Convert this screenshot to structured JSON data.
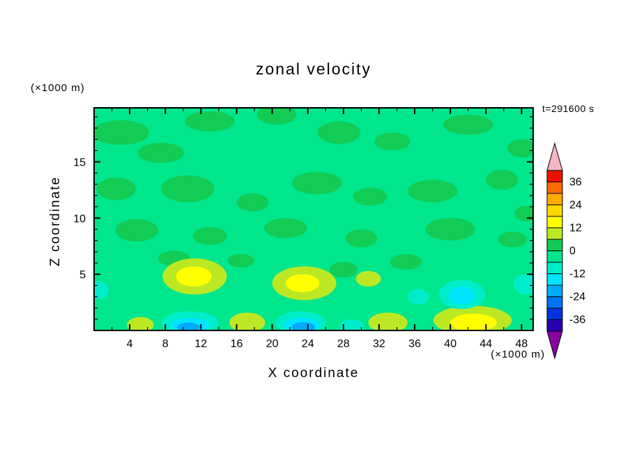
{
  "title": "zonal velocity",
  "time_label": "t=291600 s",
  "axes": {
    "x_label": "X coordinate",
    "x_unit_label": "(×1000 m)",
    "z_label": "Z coordinate",
    "z_unit_label": "(×1000 m)",
    "x_ticks": [
      4,
      8,
      12,
      16,
      20,
      24,
      28,
      32,
      36,
      40,
      44,
      48
    ],
    "z_ticks": [
      5,
      10,
      15
    ],
    "x_minor_step": 2,
    "z_minor_step": 1,
    "x_range": [
      0,
      49.3
    ],
    "z_range": [
      0,
      19.8
    ]
  },
  "colorbar": {
    "tick_labels": [
      36,
      24,
      12,
      0,
      -12,
      -24,
      -36
    ],
    "segments": [
      {
        "min": 36,
        "max": 42,
        "color": "#EE1100"
      },
      {
        "min": 30,
        "max": 36,
        "color": "#FF6A00"
      },
      {
        "min": 24,
        "max": 30,
        "color": "#FFAA00"
      },
      {
        "min": 18,
        "max": 24,
        "color": "#FFD700"
      },
      {
        "min": 12,
        "max": 18,
        "color": "#FFFF00"
      },
      {
        "min": 6,
        "max": 12,
        "color": "#BCE823"
      },
      {
        "min": 0,
        "max": 6,
        "color": "#12CC55"
      },
      {
        "min": -6,
        "max": 0,
        "color": "#00E68C"
      },
      {
        "min": -12,
        "max": -6,
        "color": "#00EDCB"
      },
      {
        "min": -18,
        "max": -12,
        "color": "#00E5FF"
      },
      {
        "min": -24,
        "max": -18,
        "color": "#00AAFF"
      },
      {
        "min": -30,
        "max": -24,
        "color": "#0072F5"
      },
      {
        "min": -36,
        "max": -30,
        "color": "#0033E0"
      },
      {
        "min": -42,
        "max": -36,
        "color": "#2A00B4"
      }
    ],
    "arrow_top_color": "#F2B6C4",
    "arrow_bottom_color": "#8A00A0"
  },
  "chart_data": {
    "type": "heatmap",
    "subtype": "filled-contour",
    "title": "zonal velocity",
    "time_annotation": "t=291600 s",
    "xlabel": "X coordinate (×1000 m)",
    "ylabel": "Z coordinate (×1000 m)",
    "x_range": [
      0,
      49.3
    ],
    "z_range": [
      0,
      19.8
    ],
    "x_ticks": [
      4,
      8,
      12,
      16,
      20,
      24,
      28,
      32,
      36,
      40,
      44,
      48
    ],
    "z_ticks": [
      5,
      10,
      15
    ],
    "contour_interval": 6,
    "levels_shown": [
      -42,
      -36,
      -30,
      -24,
      -18,
      -12,
      -6,
      0,
      6,
      12,
      18,
      24,
      30,
      36,
      42
    ],
    "legend_position": "right-colorbar",
    "grid": false,
    "background_value": -3,
    "features": [
      {
        "x": 3,
        "z": 17.6,
        "rx": 3.2,
        "rz": 1.1,
        "v": 3
      },
      {
        "x": 7.5,
        "z": 15.8,
        "rx": 2.6,
        "rz": 0.9,
        "v": 3
      },
      {
        "x": 13,
        "z": 18.6,
        "rx": 2.8,
        "rz": 0.9,
        "v": 3
      },
      {
        "x": 20.5,
        "z": 19.2,
        "rx": 2.2,
        "rz": 0.9,
        "v": 3
      },
      {
        "x": 27.5,
        "z": 17.6,
        "rx": 2.4,
        "rz": 1.0,
        "v": 3
      },
      {
        "x": 33.5,
        "z": 16.8,
        "rx": 2.0,
        "rz": 0.8,
        "v": 3
      },
      {
        "x": 42,
        "z": 18.3,
        "rx": 2.8,
        "rz": 0.9,
        "v": 3
      },
      {
        "x": 48,
        "z": 16.2,
        "rx": 1.6,
        "rz": 0.8,
        "v": 3
      },
      {
        "x": 2.5,
        "z": 12.6,
        "rx": 2.2,
        "rz": 1.0,
        "v": 3
      },
      {
        "x": 10.5,
        "z": 12.6,
        "rx": 3.0,
        "rz": 1.2,
        "v": 3
      },
      {
        "x": 17.8,
        "z": 11.4,
        "rx": 1.8,
        "rz": 0.8,
        "v": 3
      },
      {
        "x": 25,
        "z": 13.1,
        "rx": 2.8,
        "rz": 1.0,
        "v": 3
      },
      {
        "x": 31,
        "z": 11.9,
        "rx": 1.9,
        "rz": 0.8,
        "v": 3
      },
      {
        "x": 38,
        "z": 12.4,
        "rx": 2.8,
        "rz": 1.0,
        "v": 3
      },
      {
        "x": 45.8,
        "z": 13.4,
        "rx": 1.8,
        "rz": 0.9,
        "v": 3
      },
      {
        "x": 48.6,
        "z": 10.4,
        "rx": 1.4,
        "rz": 0.7,
        "v": 3
      },
      {
        "x": 4.8,
        "z": 8.9,
        "rx": 2.4,
        "rz": 1.0,
        "v": 3
      },
      {
        "x": 13,
        "z": 8.4,
        "rx": 1.9,
        "rz": 0.8,
        "v": 3
      },
      {
        "x": 21.5,
        "z": 9.1,
        "rx": 2.4,
        "rz": 0.9,
        "v": 3
      },
      {
        "x": 30,
        "z": 8.2,
        "rx": 1.8,
        "rz": 0.8,
        "v": 3
      },
      {
        "x": 40,
        "z": 9.0,
        "rx": 2.8,
        "rz": 1.0,
        "v": 3
      },
      {
        "x": 47,
        "z": 8.1,
        "rx": 1.6,
        "rz": 0.7,
        "v": 3
      },
      {
        "x": 9,
        "z": 6.4,
        "rx": 1.8,
        "rz": 0.7,
        "v": 3
      },
      {
        "x": 16.5,
        "z": 6.2,
        "rx": 1.5,
        "rz": 0.6,
        "v": 3
      },
      {
        "x": 28,
        "z": 5.4,
        "rx": 1.6,
        "rz": 0.7,
        "v": 3
      },
      {
        "x": 35,
        "z": 6.1,
        "rx": 1.8,
        "rz": 0.7,
        "v": 3
      },
      {
        "x": 11.3,
        "z": 4.8,
        "rx": 3.6,
        "rz": 1.6,
        "v": 9
      },
      {
        "x": 23.6,
        "z": 4.2,
        "rx": 3.6,
        "rz": 1.5,
        "v": 9
      },
      {
        "x": 30.8,
        "z": 4.6,
        "rx": 1.4,
        "rz": 0.7,
        "v": 9
      },
      {
        "x": 17.2,
        "z": 0.7,
        "rx": 2.0,
        "rz": 0.9,
        "v": 9
      },
      {
        "x": 33,
        "z": 0.7,
        "rx": 2.2,
        "rz": 0.9,
        "v": 9
      },
      {
        "x": 42.5,
        "z": 0.9,
        "rx": 4.4,
        "rz": 1.3,
        "v": 9
      },
      {
        "x": 5.2,
        "z": 0.5,
        "rx": 1.5,
        "rz": 0.7,
        "v": 9
      },
      {
        "x": 11.2,
        "z": 4.8,
        "rx": 2.0,
        "rz": 0.9,
        "v": 15
      },
      {
        "x": 23.4,
        "z": 4.2,
        "rx": 1.9,
        "rz": 0.8,
        "v": 15
      },
      {
        "x": 42.6,
        "z": 0.7,
        "rx": 2.6,
        "rz": 0.8,
        "v": 15
      },
      {
        "x": 41.3,
        "z": 3.2,
        "rx": 2.6,
        "rz": 1.3,
        "v": -9
      },
      {
        "x": 48.4,
        "z": 4.1,
        "rx": 1.3,
        "rz": 0.9,
        "v": -9
      },
      {
        "x": 10.8,
        "z": 0.7,
        "rx": 3.2,
        "rz": 1.0,
        "v": -9
      },
      {
        "x": 23.2,
        "z": 0.7,
        "rx": 2.8,
        "rz": 1.0,
        "v": -9
      },
      {
        "x": 28.9,
        "z": 0.4,
        "rx": 1.4,
        "rz": 0.6,
        "v": -9
      },
      {
        "x": 36.4,
        "z": 3.0,
        "rx": 1.2,
        "rz": 0.7,
        "v": -9
      },
      {
        "x": 0.6,
        "z": 3.6,
        "rx": 1.0,
        "rz": 0.8,
        "v": -9
      },
      {
        "x": 41.3,
        "z": 3.1,
        "rx": 1.5,
        "rz": 0.8,
        "v": -15
      },
      {
        "x": 10.8,
        "z": 0.5,
        "rx": 2.2,
        "rz": 0.65,
        "v": -15
      },
      {
        "x": 23.3,
        "z": 0.5,
        "rx": 2.0,
        "rz": 0.65,
        "v": -15
      },
      {
        "x": 10.6,
        "z": 0.3,
        "rx": 1.3,
        "rz": 0.4,
        "v": -21
      },
      {
        "x": 23.5,
        "z": 0.3,
        "rx": 1.3,
        "rz": 0.45,
        "v": -21
      }
    ]
  }
}
